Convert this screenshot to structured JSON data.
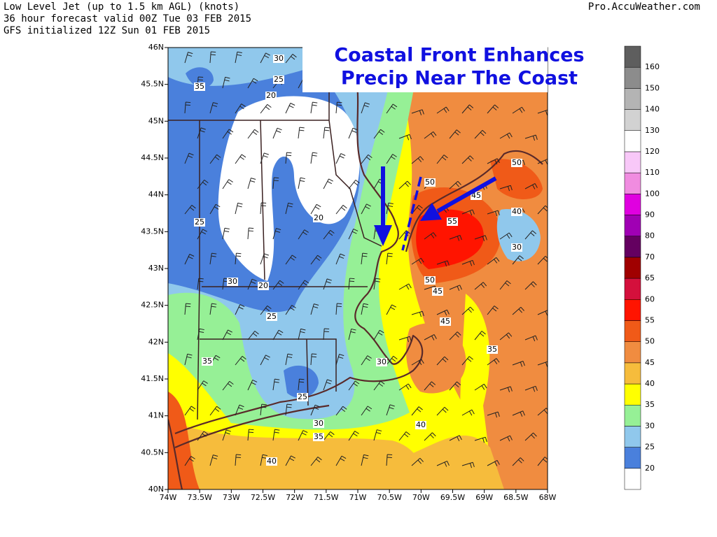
{
  "header": {
    "lines": [
      "Low Level Jet (up to 1.5 km AGL) (knots)",
      "36 hour forecast valid 00Z Tue 03 FEB 2015",
      "GFS initialized 12Z Sun 01 FEB 2015"
    ],
    "source": "Pro.AccuWeather.com"
  },
  "map": {
    "title_lines": [
      "Coastal Front Enhances",
      "Precip Near The Coast"
    ],
    "lat_labels": [
      "46N",
      "45.5N",
      "45N",
      "44.5N",
      "44N",
      "43.5N",
      "43N",
      "42.5N",
      "42N",
      "41.5N",
      "41N",
      "40.5N",
      "40N"
    ],
    "lon_labels": [
      "74W",
      "73.5W",
      "73W",
      "72.5W",
      "72W",
      "71.5W",
      "71W",
      "70.5W",
      "70W",
      "69.5W",
      "69W",
      "68.5W",
      "68W"
    ],
    "contour_labels": [
      "30",
      "25",
      "35",
      "20",
      "20",
      "25",
      "20",
      "30",
      "25",
      "35",
      "25",
      "30",
      "35",
      "40",
      "30",
      "40",
      "50",
      "50",
      "45",
      "40",
      "30",
      "55",
      "50",
      "45",
      "45",
      "35"
    ]
  },
  "colorbar": {
    "labels": [
      20,
      25,
      30,
      35,
      40,
      45,
      50,
      55,
      60,
      65,
      70,
      80,
      90,
      100,
      110,
      120,
      130,
      140,
      150,
      160
    ],
    "colors": [
      "#ffffff",
      "#4a80dc",
      "#90c8ec",
      "#96f096",
      "#ffff00",
      "#f6bc3c",
      "#f08c40",
      "#f05a18",
      "#ff1400",
      "#d4103c",
      "#a00000",
      "#640060",
      "#a000b4",
      "#e000e0",
      "#f08ce0",
      "#f8c8f8",
      "#ffffff",
      "#d2d2d2",
      "#b4b4b4",
      "#8c8c8c",
      "#5e5e5e"
    ]
  }
}
